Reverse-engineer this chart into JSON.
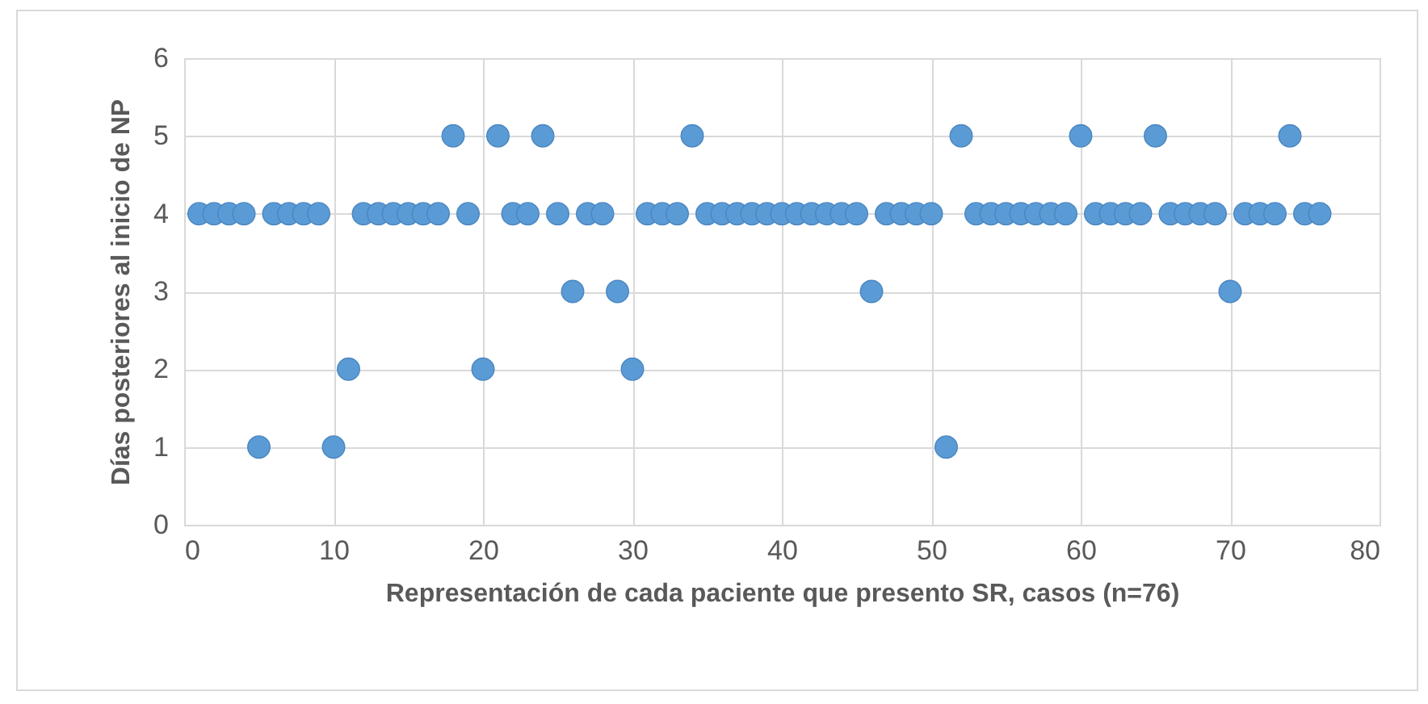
{
  "chart_data": {
    "type": "scatter",
    "xlabel": "Representación de cada paciente que presento SR, casos (n=76)",
    "ylabel": "Días posteriores  al  inicio de NP",
    "x": [
      1,
      2,
      3,
      4,
      5,
      6,
      7,
      8,
      9,
      10,
      11,
      12,
      13,
      14,
      15,
      16,
      17,
      18,
      19,
      20,
      21,
      22,
      23,
      24,
      25,
      26,
      27,
      28,
      29,
      30,
      31,
      32,
      33,
      34,
      35,
      36,
      37,
      38,
      39,
      40,
      41,
      42,
      43,
      44,
      45,
      46,
      47,
      48,
      49,
      50,
      51,
      52,
      53,
      54,
      55,
      56,
      57,
      58,
      59,
      60,
      61,
      62,
      63,
      64,
      65,
      66,
      67,
      68,
      69,
      70,
      71,
      72,
      73,
      74,
      75,
      76
    ],
    "series": [
      {
        "color": "#5b9bd5",
        "values": [
          4,
          4,
          4,
          4,
          1,
          4,
          4,
          4,
          4,
          1,
          2,
          4,
          4,
          4,
          4,
          4,
          4,
          5,
          4,
          2,
          5,
          4,
          4,
          5,
          4,
          3,
          4,
          4,
          3,
          2,
          4,
          4,
          4,
          5,
          4,
          4,
          4,
          4,
          4,
          4,
          4,
          4,
          4,
          4,
          4,
          3,
          4,
          4,
          4,
          4,
          1,
          5,
          4,
          4,
          4,
          4,
          4,
          4,
          4,
          5,
          4,
          4,
          4,
          4,
          5,
          4,
          4,
          4,
          4,
          3,
          4,
          4,
          4,
          5,
          4,
          4
        ]
      }
    ],
    "xlim": [
      0,
      80
    ],
    "xticks": [
      0,
      10,
      20,
      30,
      40,
      50,
      60,
      70,
      80
    ],
    "ylim": [
      0,
      6
    ],
    "yticks": [
      0,
      1,
      2,
      3,
      4,
      5,
      6
    ],
    "grid": true,
    "marker": "circle",
    "legend": false
  }
}
